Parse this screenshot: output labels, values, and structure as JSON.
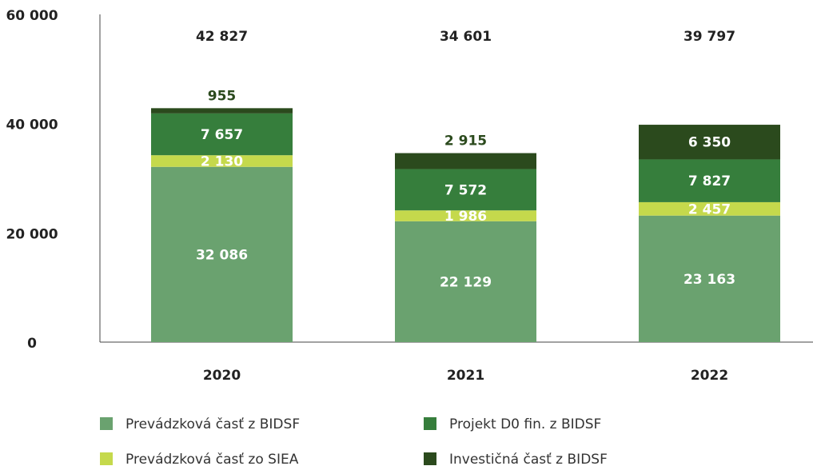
{
  "chart_data": {
    "type": "stacked_bar",
    "categories": [
      "2020",
      "2021",
      "2022"
    ],
    "series": [
      {
        "name": "Prevádzková časť z BIDSF",
        "color": "#6aa26f",
        "values": [
          32086,
          22129,
          23163
        ],
        "value_labels": [
          "32 086",
          "22 129",
          "23 163"
        ]
      },
      {
        "name": "Prevádzková časť zo SIEA",
        "color": "#c5d94c",
        "values": [
          2130,
          1986,
          2457
        ],
        "value_labels": [
          "2 130",
          "1 986",
          "2 457"
        ]
      },
      {
        "name": "Projekt D0 fin. z BIDSF",
        "color": "#367e3c",
        "values": [
          7657,
          7572,
          7827
        ],
        "value_labels": [
          "7 657",
          "7 572",
          "7 827"
        ]
      },
      {
        "name": "Investičná časť z BIDSF",
        "color": "#2b4a1d",
        "values": [
          955,
          2915,
          6350
        ],
        "value_labels": [
          "955",
          "2 915",
          "6 350"
        ]
      }
    ],
    "totals": [
      {
        "value": 42827,
        "label": "42 827"
      },
      {
        "value": 34601,
        "label": "34 601"
      },
      {
        "value": 39797,
        "label": "39 797"
      }
    ],
    "ylim": [
      0,
      60000
    ],
    "yticks": [
      0,
      {
        "value": 20000,
        "label": "20 000"
      },
      {
        "value": 40000,
        "label": "40 000"
      },
      {
        "value": 60000,
        "label": "60 000"
      }
    ],
    "grid": false
  }
}
